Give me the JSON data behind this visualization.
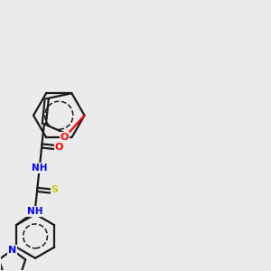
{
  "background_color": "#ebebeb",
  "bond_color": "#1a1a1a",
  "figsize": [
    3.0,
    3.0
  ],
  "dpi": 100,
  "atom_colors": {
    "O": "#ff0000",
    "N": "#0000ff",
    "S": "#cccc00",
    "C": "#1a1a1a",
    "H": "#008080"
  },
  "xlim": [
    0,
    10
  ],
  "ylim": [
    0,
    10
  ]
}
